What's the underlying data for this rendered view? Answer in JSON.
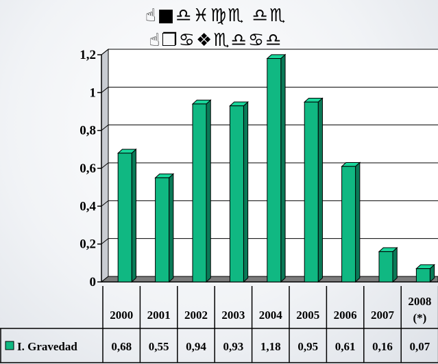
{
  "chart_data": {
    "type": "bar",
    "title_lines": [
      "☝■♎♓♍♏ ♎♏",
      "☝❐♋❖♏♎♋♎"
    ],
    "categories": [
      {
        "lines": [
          "2000"
        ]
      },
      {
        "lines": [
          "2001"
        ]
      },
      {
        "lines": [
          "2002"
        ]
      },
      {
        "lines": [
          "2003"
        ]
      },
      {
        "lines": [
          "2004"
        ]
      },
      {
        "lines": [
          "2005"
        ]
      },
      {
        "lines": [
          "2006"
        ]
      },
      {
        "lines": [
          "2007"
        ]
      },
      {
        "lines": [
          "2008",
          "(*)"
        ]
      }
    ],
    "series": [
      {
        "name": "I. Gravedad",
        "values": [
          0.68,
          0.55,
          0.94,
          0.93,
          1.18,
          0.95,
          0.61,
          0.16,
          0.07
        ],
        "labels": [
          "0,68",
          "0,55",
          "0,94",
          "0,93",
          "1,18",
          "0,95",
          "0,61",
          "0,16",
          "0,07"
        ],
        "color": "#10b882"
      }
    ],
    "ylim": [
      0,
      1.2
    ],
    "yticks": [
      {
        "value": 0,
        "label": "0"
      },
      {
        "value": 0.2,
        "label": "0,2"
      },
      {
        "value": 0.4,
        "label": "0,4"
      },
      {
        "value": 0.6,
        "label": "0,6"
      },
      {
        "value": 0.8,
        "label": "0,8"
      },
      {
        "value": 1,
        "label": "1"
      },
      {
        "value": 1.2,
        "label": "1,2"
      }
    ],
    "grid": true,
    "legend_position": "bottom-left",
    "data_table": true
  }
}
